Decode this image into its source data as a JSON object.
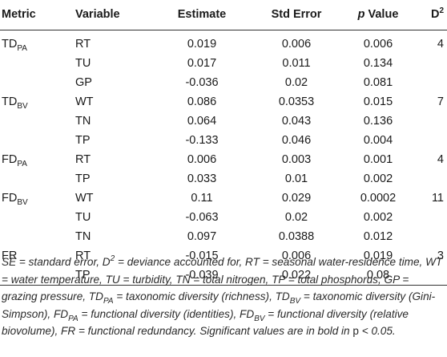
{
  "table": {
    "headers": {
      "metric": "Metric",
      "variable": "Variable",
      "estimate": "Estimate",
      "std_error": "Std Error",
      "p_value_p": "p",
      "p_value_rest": " Value",
      "d2_base": "D",
      "d2_sup": "2"
    },
    "rows": [
      {
        "metric_base": "TD",
        "metric_sub": "PA",
        "variable": "RT",
        "estimate": "0.019",
        "std_error": "0.006",
        "p_value": "0.006",
        "d2": "4"
      },
      {
        "metric_base": "",
        "metric_sub": "",
        "variable": "TU",
        "estimate": "0.017",
        "std_error": "0.011",
        "p_value": "0.134",
        "d2": ""
      },
      {
        "metric_base": "",
        "metric_sub": "",
        "variable": "GP",
        "estimate": "-0.036",
        "std_error": "0.02",
        "p_value": "0.081",
        "d2": ""
      },
      {
        "metric_base": "TD",
        "metric_sub": "BV",
        "variable": "WT",
        "estimate": "0.086",
        "std_error": "0.0353",
        "p_value": "0.015",
        "d2": "7"
      },
      {
        "metric_base": "",
        "metric_sub": "",
        "variable": "TN",
        "estimate": "0.064",
        "std_error": "0.043",
        "p_value": "0.136",
        "d2": ""
      },
      {
        "metric_base": "",
        "metric_sub": "",
        "variable": "TP",
        "estimate": "-0.133",
        "std_error": "0.046",
        "p_value": "0.004",
        "d2": ""
      },
      {
        "metric_base": "FD",
        "metric_sub": "PA",
        "variable": "RT",
        "estimate": "0.006",
        "std_error": "0.003",
        "p_value": "0.001",
        "d2": "4"
      },
      {
        "metric_base": "",
        "metric_sub": "",
        "variable": "TP",
        "estimate": "0.033",
        "std_error": "0.01",
        "p_value": "0.002",
        "d2": ""
      },
      {
        "metric_base": "FD",
        "metric_sub": "BV",
        "variable": "WT",
        "estimate": "0.11",
        "std_error": "0.029",
        "p_value": "0.0002",
        "d2": "11"
      },
      {
        "metric_base": "",
        "metric_sub": "",
        "variable": "TU",
        "estimate": "-0.063",
        "std_error": "0.02",
        "p_value": "0.002",
        "d2": ""
      },
      {
        "metric_base": "",
        "metric_sub": "",
        "variable": "TN",
        "estimate": "0.097",
        "std_error": "0.0388",
        "p_value": "0.012",
        "d2": ""
      },
      {
        "metric_base": "FR",
        "metric_sub": "",
        "variable": "RT",
        "estimate": "-0.015",
        "std_error": "0.006",
        "p_value": "0.019",
        "d2": "3"
      },
      {
        "metric_base": "",
        "metric_sub": "",
        "variable": "TP",
        "estimate": "-0.039",
        "std_error": "0.022",
        "p_value": "0.08",
        "d2": ""
      }
    ]
  },
  "footnote": {
    "s1": "SE = standard error, D",
    "s1_sup": "2",
    "s2": " = deviance accounted for, RT = seasonal water-residence time, WT = water temperature, TU = turbidity, TN = total nitrogen, TP = total phosphorus, GP = grazing pressure, TD",
    "s2_sub": "PA",
    "s3": " = taxonomic diversity (richness), TD",
    "s3_sub": "BV",
    "s4": " = taxonomic diversity (Gini-Simpson), FD",
    "s4_sub": "PA",
    "s5": " = functional diversity (identities), FD",
    "s5_sub": "BV",
    "s6": " = functional diversity (relative biovolume), FR = functional redundancy. Significant values are in bold in ",
    "s7": "p",
    "s8": " < 0.05."
  }
}
